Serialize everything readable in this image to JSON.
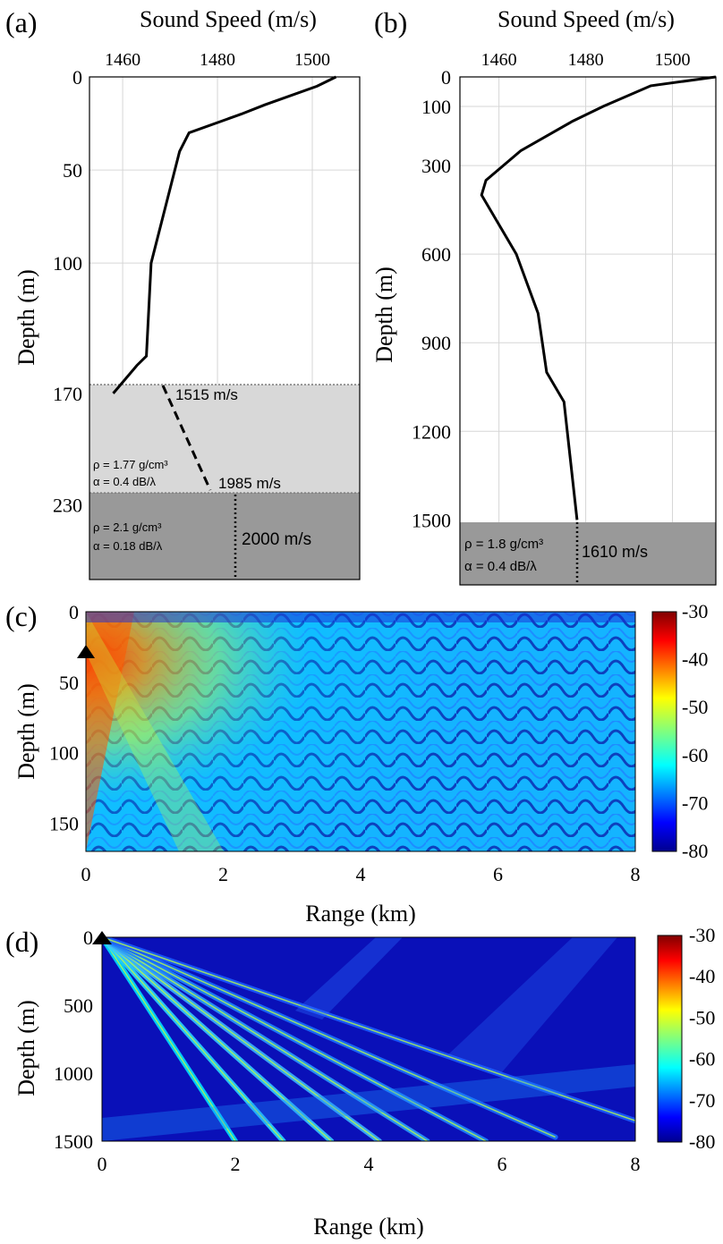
{
  "panels": {
    "a": {
      "label": "(a)",
      "top_axis_title": "Sound Speed (m/s)",
      "y_axis_title": "Depth (m)",
      "x_ticks": [
        "1460",
        "1480",
        "1500"
      ],
      "y_ticks": [
        "0",
        "50",
        "100",
        "170",
        "230"
      ],
      "layer1": {
        "speed_top": "1515 m/s",
        "speed_bottom": "1985 m/s",
        "rho": "ρ = 1.77 g/cm³",
        "alpha": "α = 0.4 dB/λ"
      },
      "layer2": {
        "speed": "2000 m/s",
        "rho": "ρ = 2.1 g/cm³",
        "alpha": "α = 0.18 dB/λ"
      }
    },
    "b": {
      "label": "(b)",
      "top_axis_title": "Sound Speed (m/s)",
      "y_axis_title": "Depth (m)",
      "x_ticks": [
        "1460",
        "1480",
        "1500"
      ],
      "y_ticks": [
        "0",
        "100",
        "300",
        "600",
        "900",
        "1200",
        "1500"
      ],
      "bottom": {
        "speed": "1610 m/s",
        "rho": "ρ = 1.8 g/cm³",
        "alpha": "α = 0.4 dB/λ"
      }
    },
    "c": {
      "label": "(c)",
      "x_axis_title": "Range (km)",
      "y_axis_title": "Depth (m)",
      "x_ticks": [
        "0",
        "2",
        "4",
        "6",
        "8"
      ],
      "y_ticks": [
        "0",
        "50",
        "100",
        "150"
      ],
      "colorbar_ticks": [
        "-30",
        "-40",
        "-50",
        "-60",
        "-70",
        "-80"
      ]
    },
    "d": {
      "label": "(d)",
      "x_axis_title": "Range (km)",
      "y_axis_title": "Depth (m)",
      "x_ticks": [
        "0",
        "2",
        "4",
        "6",
        "8"
      ],
      "y_ticks": [
        "0",
        "500",
        "1000",
        "1500"
      ],
      "colorbar_ticks": [
        "-30",
        "-40",
        "-50",
        "-60",
        "-70",
        "-80"
      ]
    }
  },
  "chart_data": [
    {
      "type": "line",
      "panel": "a",
      "xlabel": "Sound Speed (m/s)",
      "ylabel": "Depth (m)",
      "xlim": [
        1453,
        1510
      ],
      "ylim": [
        0,
        270
      ],
      "y_reversed": true,
      "grid": true,
      "series": [
        {
          "x": [
            1505,
            1501,
            1490,
            1485,
            1474,
            1472,
            1466,
            1465,
            1463,
            1458
          ],
          "y": [
            0,
            5,
            15,
            20,
            30,
            40,
            100,
            150,
            155,
            170
          ]
        }
      ],
      "sediment_layer_1": {
        "depth": [
          170,
          230
        ],
        "speed": [
          1515,
          1985
        ],
        "density_g_cm3": 1.77,
        "attenuation_dB_per_lambda": 0.4
      },
      "sediment_layer_2": {
        "depth_top": 230,
        "speed": 2000,
        "density_g_cm3": 2.1,
        "attenuation_dB_per_lambda": 0.18
      }
    },
    {
      "type": "line",
      "panel": "b",
      "xlabel": "Sound Speed (m/s)",
      "ylabel": "Depth (m)",
      "xlim": [
        1451,
        1510
      ],
      "ylim": [
        0,
        1720
      ],
      "y_reversed": true,
      "grid": true,
      "series": [
        {
          "x": [
            1510,
            1495,
            1484,
            1477,
            1465,
            1461,
            1457,
            1456,
            1464,
            1469,
            1471,
            1475,
            1478
          ],
          "y": [
            0,
            30,
            100,
            150,
            250,
            300,
            350,
            400,
            600,
            800,
            1000,
            1100,
            1500
          ]
        }
      ],
      "bottom": {
        "depth_top": 1500,
        "speed": 1610,
        "density_g_cm3": 1.8,
        "attenuation_dB_per_lambda": 0.4
      }
    },
    {
      "type": "heatmap",
      "panel": "c",
      "xlabel": "Range (km)",
      "ylabel": "Depth (m)",
      "xlim": [
        0,
        8
      ],
      "ylim": [
        0,
        170
      ],
      "source": {
        "range_km": 0,
        "depth_m": 30
      },
      "clim": [
        -80,
        -30
      ],
      "colormap": "jet"
    },
    {
      "type": "heatmap",
      "panel": "d",
      "xlabel": "Range (km)",
      "ylabel": "Depth (m)",
      "xlim": [
        0,
        8
      ],
      "ylim": [
        0,
        1500
      ],
      "source": {
        "range_km": 0,
        "depth_m": 0
      },
      "clim": [
        -80,
        -30
      ],
      "colormap": "jet"
    }
  ]
}
